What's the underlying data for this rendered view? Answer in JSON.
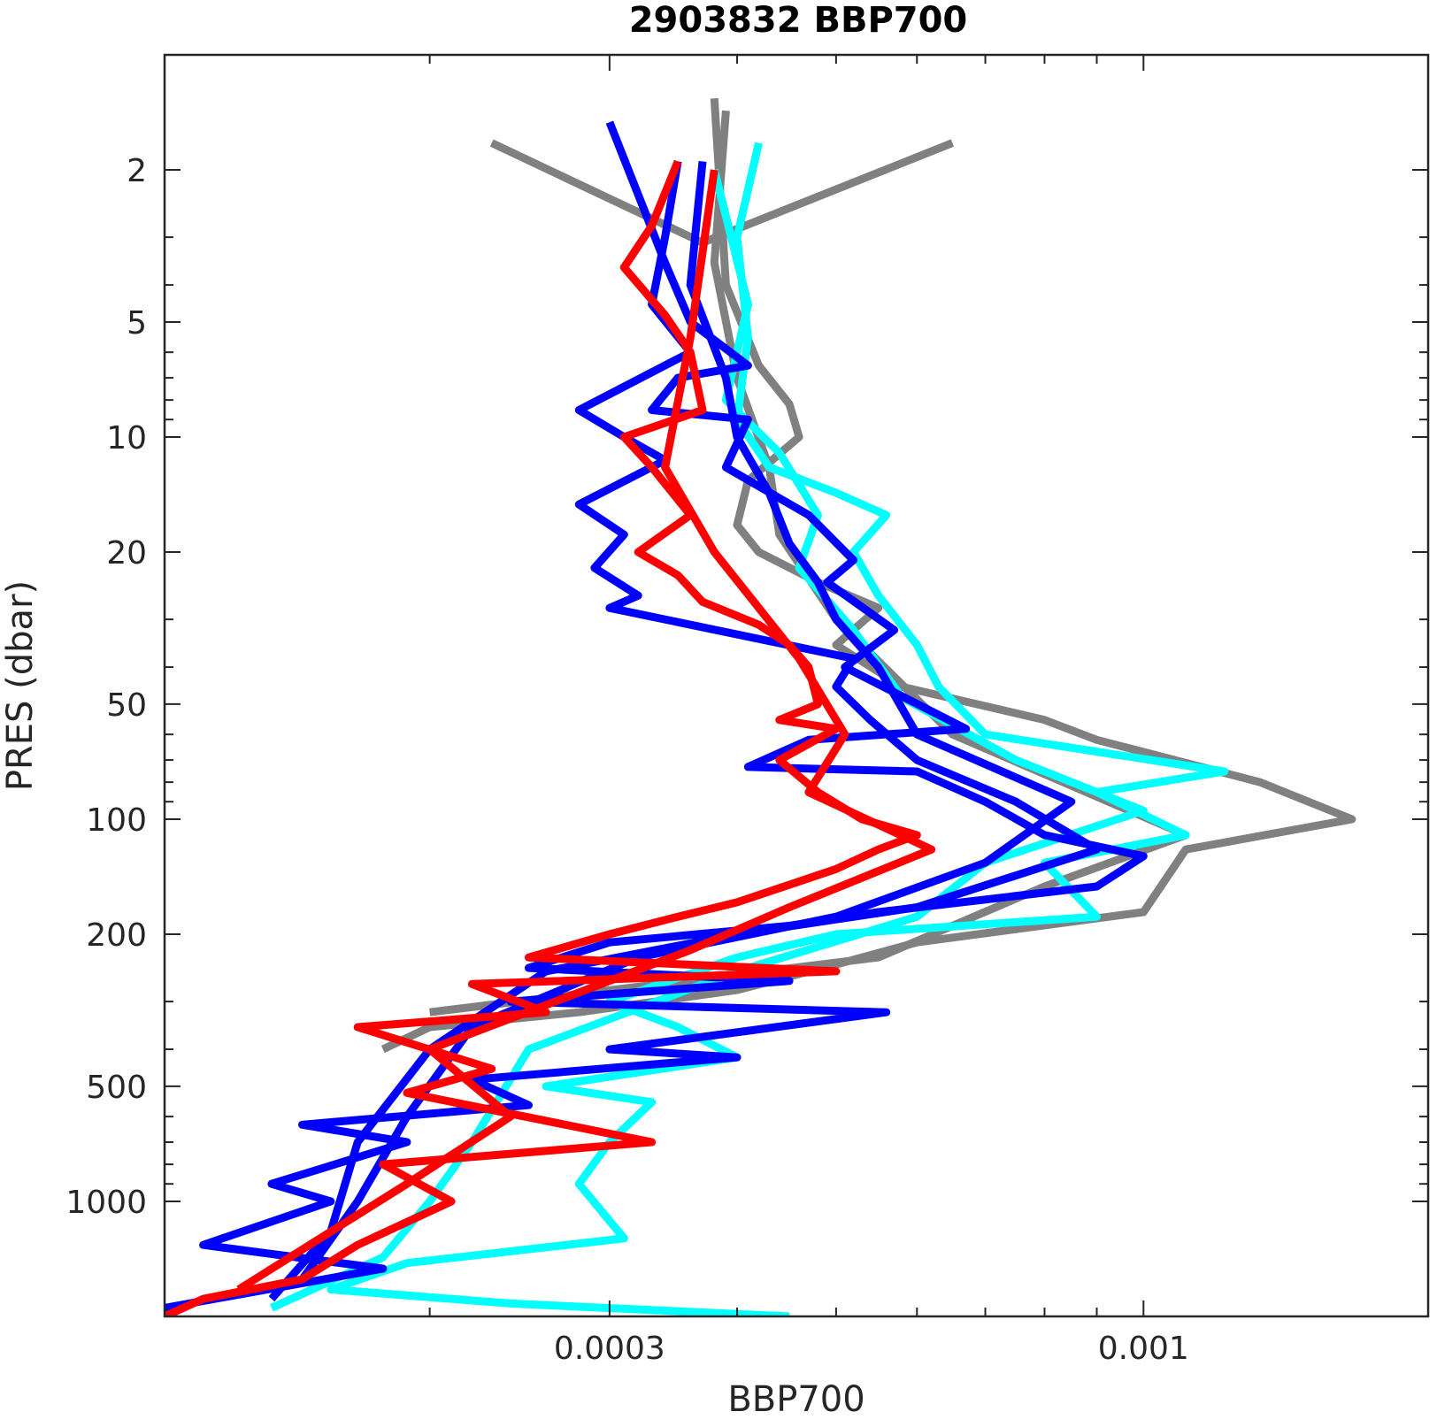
{
  "chart_data": {
    "type": "line",
    "title": "2903832 BBP700",
    "xlabel": "BBP700",
    "ylabel": "PRES (dbar)",
    "xscale": "log",
    "yscale": "log",
    "y_reversed": true,
    "xlim": [
      0.00011,
      0.0019
    ],
    "ylim": [
      1,
      2000
    ],
    "x_ticks": [
      {
        "value": 0.0003,
        "label": "0.0003"
      },
      {
        "value": 0.001,
        "label": "0.001"
      }
    ],
    "y_ticks": [
      {
        "value": 2,
        "label": "2"
      },
      {
        "value": 5,
        "label": "5"
      },
      {
        "value": 10,
        "label": "10"
      },
      {
        "value": 20,
        "label": "20"
      },
      {
        "value": 50,
        "label": "50"
      },
      {
        "value": 100,
        "label": "100"
      },
      {
        "value": 200,
        "label": "200"
      },
      {
        "value": 500,
        "label": "500"
      },
      {
        "value": 1000,
        "label": "1000"
      }
    ],
    "grid": false,
    "colors": {
      "gray": "#808080",
      "cyan": "#00ffff",
      "blue": "#0000ff",
      "red": "#ff0000"
    },
    "series": [
      {
        "color": "gray",
        "points": [
          [
            0.00023,
            1.7
          ],
          [
            0.00037,
            3.1
          ],
          [
            0.00065,
            1.7
          ]
        ]
      },
      {
        "color": "gray",
        "points": [
          [
            0.00038,
            1.3
          ],
          [
            0.00039,
            4.0
          ],
          [
            0.00042,
            6.5
          ],
          [
            0.00045,
            8.2
          ],
          [
            0.00046,
            10.0
          ],
          [
            0.00041,
            13.0
          ],
          [
            0.0004,
            17.0
          ],
          [
            0.00042,
            20.0
          ],
          [
            0.00048,
            24.0
          ],
          [
            0.00055,
            28.0
          ],
          [
            0.0005,
            35.0
          ],
          [
            0.00058,
            45.0
          ],
          [
            0.0008,
            55.0
          ],
          [
            0.0009,
            62.0
          ],
          [
            0.0013,
            80.0
          ],
          [
            0.0016,
            100.0
          ],
          [
            0.0011,
            120.0
          ],
          [
            0.001,
            175.0
          ],
          [
            0.0006,
            210.0
          ],
          [
            0.0005,
            240.0
          ],
          [
            0.0004,
            280.0
          ],
          [
            0.00028,
            320.0
          ],
          [
            0.0002,
            350.0
          ],
          [
            0.00018,
            400.0
          ]
        ]
      },
      {
        "color": "gray",
        "points": [
          [
            0.00039,
            1.4
          ],
          [
            0.00038,
            3.5
          ],
          [
            0.0004,
            7.0
          ],
          [
            0.00043,
            12.0
          ],
          [
            0.00044,
            18.0
          ],
          [
            0.0005,
            30.0
          ],
          [
            0.00065,
            60.0
          ],
          [
            0.0011,
            110.0
          ],
          [
            0.0008,
            150.0
          ],
          [
            0.00055,
            230.0
          ],
          [
            0.0002,
            320.0
          ]
        ]
      },
      {
        "color": "cyan",
        "points": [
          [
            0.00042,
            1.7
          ],
          [
            0.0004,
            3.0
          ],
          [
            0.00041,
            5.5
          ],
          [
            0.0004,
            9.0
          ],
          [
            0.00043,
            12.0
          ],
          [
            0.0005,
            14.0
          ],
          [
            0.00056,
            16.0
          ],
          [
            0.00052,
            20.0
          ],
          [
            0.00055,
            26.0
          ],
          [
            0.0006,
            35.0
          ],
          [
            0.00063,
            45.0
          ],
          [
            0.0007,
            60.0
          ],
          [
            0.0012,
            75.0
          ],
          [
            0.0009,
            85.0
          ],
          [
            0.0011,
            110.0
          ],
          [
            0.0008,
            130.0
          ],
          [
            0.0009,
            180.0
          ],
          [
            0.0005,
            200.0
          ],
          [
            0.0004,
            230.0
          ],
          [
            0.0003,
            300.0
          ],
          [
            0.00035,
            350.0
          ],
          [
            0.0004,
            420.0
          ],
          [
            0.00026,
            500.0
          ],
          [
            0.00033,
            550.0
          ],
          [
            0.0003,
            700.0
          ],
          [
            0.00028,
            900.0
          ],
          [
            0.00031,
            1250.0
          ],
          [
            0.00019,
            1450.0
          ],
          [
            0.00016,
            1700.0
          ],
          [
            0.00024,
            1850.0
          ],
          [
            0.00045,
            2000.0
          ]
        ]
      },
      {
        "color": "cyan",
        "points": [
          [
            0.00038,
            2.0
          ],
          [
            0.00041,
            4.5
          ],
          [
            0.00039,
            8.0
          ],
          [
            0.00044,
            11.0
          ],
          [
            0.00048,
            16.0
          ],
          [
            0.00046,
            22.0
          ],
          [
            0.00052,
            32.0
          ],
          [
            0.00058,
            48.0
          ],
          [
            0.00075,
            70.0
          ],
          [
            0.001,
            95.0
          ],
          [
            0.0007,
            130.0
          ],
          [
            0.0006,
            180.0
          ],
          [
            0.0004,
            250.0
          ],
          [
            0.00025,
            400.0
          ],
          [
            0.00022,
            700.0
          ],
          [
            0.0002,
            1000.0
          ],
          [
            0.00018,
            1400.0
          ],
          [
            0.00014,
            1900.0
          ]
        ]
      },
      {
        "color": "blue",
        "points": [
          [
            0.0003,
            1.5
          ],
          [
            0.00034,
            3.5
          ],
          [
            0.00036,
            5.0
          ],
          [
            0.00041,
            6.5
          ],
          [
            0.00035,
            7.0
          ],
          [
            0.00033,
            8.5
          ],
          [
            0.00041,
            9.0
          ],
          [
            0.00039,
            12.0
          ],
          [
            0.00047,
            16.0
          ],
          [
            0.00052,
            21.0
          ],
          [
            0.00049,
            24.0
          ],
          [
            0.00057,
            32.0
          ],
          [
            0.00051,
            40.0
          ],
          [
            0.00067,
            58.0
          ],
          [
            0.00047,
            62.0
          ],
          [
            0.00041,
            73.0
          ],
          [
            0.0006,
            75.0
          ],
          [
            0.0007,
            90.0
          ],
          [
            0.0008,
            110.0
          ],
          [
            0.001,
            125.0
          ],
          [
            0.0009,
            150.0
          ],
          [
            0.00055,
            175.0
          ],
          [
            0.00045,
            190.0
          ],
          [
            0.0003,
            210.0
          ],
          [
            0.00025,
            245.0
          ],
          [
            0.00045,
            265.0
          ],
          [
            0.00024,
            300.0
          ],
          [
            0.00056,
            320.0
          ],
          [
            0.0003,
            400.0
          ],
          [
            0.0004,
            420.0
          ],
          [
            0.00022,
            480.0
          ],
          [
            0.00025,
            560.0
          ],
          [
            0.00015,
            630.0
          ],
          [
            0.00019,
            700.0
          ],
          [
            0.00014,
            900.0
          ],
          [
            0.00016,
            1000.0
          ],
          [
            0.00012,
            1300.0
          ],
          [
            0.00018,
            1500.0
          ],
          [
            0.00011,
            1900.0
          ]
        ]
      },
      {
        "color": "blue",
        "points": [
          [
            0.00035,
            1.9
          ],
          [
            0.00034,
            3.0
          ],
          [
            0.00033,
            4.5
          ],
          [
            0.00036,
            6.0
          ],
          [
            0.00028,
            8.5
          ],
          [
            0.00031,
            10.0
          ],
          [
            0.00034,
            11.5
          ],
          [
            0.00028,
            15.0
          ],
          [
            0.00031,
            18.0
          ],
          [
            0.00029,
            22.0
          ],
          [
            0.00032,
            26.0
          ],
          [
            0.0003,
            28.0
          ],
          [
            0.00052,
            38.0
          ],
          [
            0.0005,
            45.0
          ],
          [
            0.00054,
            55.0
          ],
          [
            0.0006,
            70.0
          ],
          [
            0.00075,
            90.0
          ],
          [
            0.0009,
            120.0
          ],
          [
            0.0006,
            170.0
          ],
          [
            0.0004,
            200.0
          ],
          [
            0.00026,
            250.0
          ],
          [
            0.0002,
            400.0
          ],
          [
            0.00017,
            700.0
          ],
          [
            0.00016,
            1200.0
          ],
          [
            0.00014,
            1800.0
          ]
        ]
      },
      {
        "color": "blue",
        "points": [
          [
            0.00037,
            1.9
          ],
          [
            0.00036,
            4.0
          ],
          [
            0.00039,
            7.0
          ],
          [
            0.0004,
            10.0
          ],
          [
            0.00043,
            14.0
          ],
          [
            0.00045,
            19.0
          ],
          [
            0.00048,
            24.0
          ],
          [
            0.0005,
            30.0
          ],
          [
            0.00055,
            40.0
          ],
          [
            0.0006,
            60.0
          ],
          [
            0.00085,
            90.0
          ],
          [
            0.0007,
            130.0
          ],
          [
            0.0005,
            180.0
          ],
          [
            0.00032,
            230.0
          ],
          [
            0.00022,
            350.0
          ],
          [
            0.00019,
            600.0
          ],
          [
            0.00017,
            1000.0
          ],
          [
            0.00015,
            1600.0
          ]
        ]
      },
      {
        "color": "red",
        "points": [
          [
            0.00035,
            1.9
          ],
          [
            0.00033,
            2.8
          ],
          [
            0.00031,
            3.6
          ],
          [
            0.00034,
            4.8
          ],
          [
            0.00036,
            6.0
          ],
          [
            0.00037,
            8.5
          ],
          [
            0.00031,
            10.0
          ],
          [
            0.00033,
            12.0
          ],
          [
            0.00036,
            16.0
          ],
          [
            0.00032,
            20.0
          ],
          [
            0.00035,
            23.0
          ],
          [
            0.00037,
            27.0
          ],
          [
            0.00042,
            31.0
          ],
          [
            0.00045,
            35.0
          ],
          [
            0.00047,
            40.0
          ],
          [
            0.00048,
            50.0
          ],
          [
            0.00044,
            55.0
          ],
          [
            0.0005,
            58.0
          ],
          [
            0.00044,
            70.0
          ],
          [
            0.00048,
            85.0
          ],
          [
            0.00053,
            100.0
          ],
          [
            0.0006,
            110.0
          ],
          [
            0.00055,
            120.0
          ],
          [
            0.0005,
            135.0
          ],
          [
            0.0004,
            165.0
          ],
          [
            0.00035,
            180.0
          ],
          [
            0.0003,
            200.0
          ],
          [
            0.00025,
            230.0
          ],
          [
            0.0005,
            250.0
          ],
          [
            0.00022,
            270.0
          ],
          [
            0.00026,
            320.0
          ],
          [
            0.00017,
            350.0
          ],
          [
            0.00023,
            450.0
          ],
          [
            0.00019,
            520.0
          ],
          [
            0.00033,
            700.0
          ],
          [
            0.00018,
            800.0
          ],
          [
            0.00021,
            1000.0
          ],
          [
            0.00017,
            1300.0
          ],
          [
            0.00015,
            1600.0
          ],
          [
            0.00012,
            1800.0
          ],
          [
            0.00011,
            2000.0
          ]
        ]
      },
      {
        "color": "red",
        "points": [
          [
            0.00038,
            2.0
          ],
          [
            0.00036,
            5.5
          ],
          [
            0.00034,
            12.0
          ],
          [
            0.00038,
            20.0
          ],
          [
            0.00046,
            38.0
          ],
          [
            0.00051,
            60.0
          ],
          [
            0.00047,
            85.0
          ],
          [
            0.00062,
            120.0
          ],
          [
            0.00045,
            170.0
          ],
          [
            0.00036,
            220.0
          ],
          [
            0.0002,
            400.0
          ],
          [
            0.00024,
            600.0
          ],
          [
            0.00019,
            900.0
          ],
          [
            0.00013,
            1700.0
          ]
        ]
      }
    ]
  }
}
